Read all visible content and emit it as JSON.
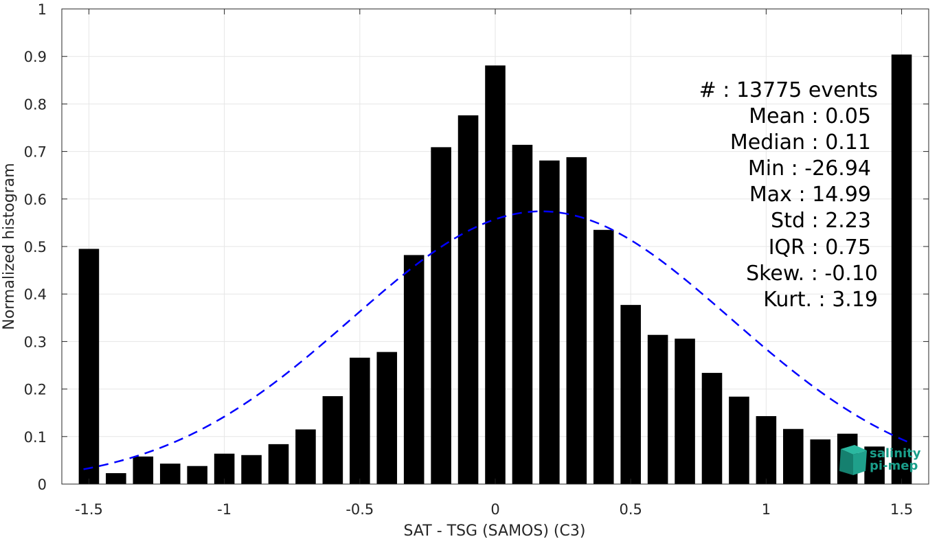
{
  "chart_data": {
    "type": "bar",
    "xlabel": "SAT - TSG (SAMOS) (C3)",
    "ylabel": "Normalized histogram",
    "xlim": [
      -1.6,
      1.6
    ],
    "ylim": [
      0,
      1
    ],
    "grid": true,
    "xticks": [
      -1.5,
      -1,
      -0.5,
      0,
      0.5,
      1,
      1.5
    ],
    "xtick_labels": [
      "-1.5",
      "-1",
      "-0.5",
      "0",
      "0.5",
      "1",
      "1.5"
    ],
    "yticks": [
      0,
      0.1,
      0.2,
      0.3,
      0.4,
      0.5,
      0.6,
      0.7,
      0.8,
      0.9,
      1
    ],
    "ytick_labels": [
      "0",
      "0.1",
      "0.2",
      "0.3",
      "0.4",
      "0.5",
      "0.6",
      "0.7",
      "0.8",
      "0.9",
      "1"
    ],
    "bar_width": 0.075,
    "bar_color": "#000000",
    "bars": [
      {
        "x": -1.5,
        "value": 0.495
      },
      {
        "x": -1.4,
        "value": 0.023
      },
      {
        "x": -1.3,
        "value": 0.058
      },
      {
        "x": -1.2,
        "value": 0.043
      },
      {
        "x": -1.1,
        "value": 0.038
      },
      {
        "x": -1.0,
        "value": 0.064
      },
      {
        "x": -0.9,
        "value": 0.061
      },
      {
        "x": -0.8,
        "value": 0.084
      },
      {
        "x": -0.7,
        "value": 0.115
      },
      {
        "x": -0.6,
        "value": 0.185
      },
      {
        "x": -0.5,
        "value": 0.266
      },
      {
        "x": -0.4,
        "value": 0.278
      },
      {
        "x": -0.3,
        "value": 0.482
      },
      {
        "x": -0.2,
        "value": 0.709
      },
      {
        "x": -0.1,
        "value": 0.776
      },
      {
        "x": 0.0,
        "value": 0.881
      },
      {
        "x": 0.1,
        "value": 0.714
      },
      {
        "x": 0.2,
        "value": 0.681
      },
      {
        "x": 0.3,
        "value": 0.688
      },
      {
        "x": 0.4,
        "value": 0.535
      },
      {
        "x": 0.5,
        "value": 0.377
      },
      {
        "x": 0.6,
        "value": 0.314
      },
      {
        "x": 0.7,
        "value": 0.306
      },
      {
        "x": 0.8,
        "value": 0.234
      },
      {
        "x": 0.9,
        "value": 0.184
      },
      {
        "x": 1.0,
        "value": 0.143
      },
      {
        "x": 1.1,
        "value": 0.116
      },
      {
        "x": 1.2,
        "value": 0.094
      },
      {
        "x": 1.3,
        "value": 0.106
      },
      {
        "x": 1.4,
        "value": 0.079
      },
      {
        "x": 1.5,
        "value": 0.904
      }
    ],
    "fit_curve": {
      "style": "dashed",
      "color": "#0000ff",
      "mean": 0.17,
      "sigma": 0.7,
      "peak": 0.574,
      "x_range": [
        -1.52,
        1.52
      ]
    }
  },
  "stats": {
    "count": "#  : 13775 events",
    "mean": "Mean : 0.05",
    "median": "Median : 0.11",
    "min": "Min : -26.94",
    "max": "Max : 14.99",
    "std": "Std : 2.23",
    "iqr": "IQR : 0.75",
    "skew": "Skew. : -0.10",
    "kurt": "Kurt. : 3.19"
  },
  "logo": {
    "line1": "salinity",
    "line2": "pi-mep",
    "color": "#1a9e8a"
  }
}
